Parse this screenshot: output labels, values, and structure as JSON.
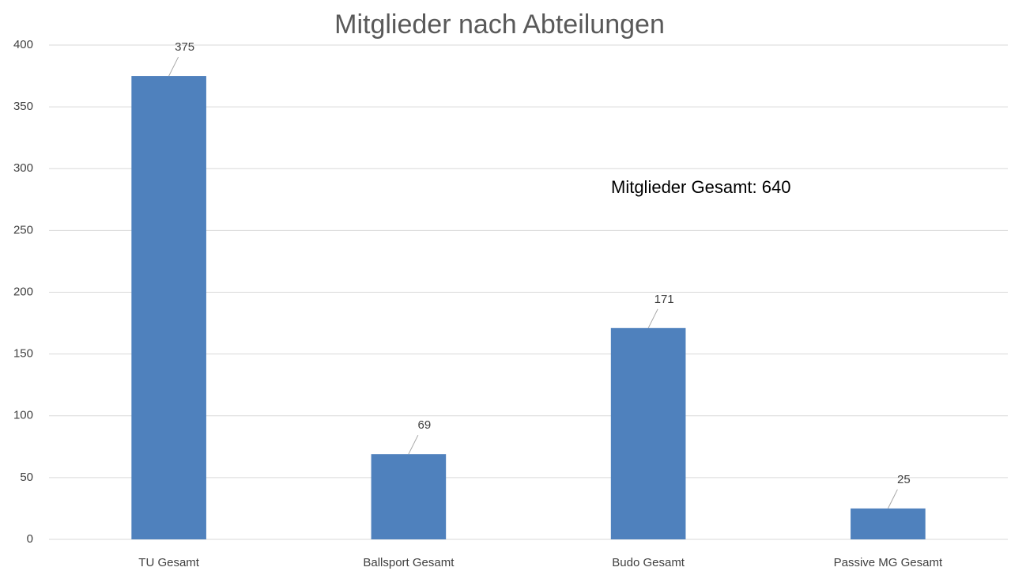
{
  "chart_data": {
    "type": "bar",
    "title": "Mitglieder nach Abteilungen",
    "annotation": "Mitglieder Gesamt: 640",
    "categories": [
      "TU Gesamt",
      "Ballsport Gesamt",
      "Budo Gesamt",
      "Passive MG Gesamt"
    ],
    "values": [
      375,
      69,
      171,
      25
    ],
    "color": "#4f81bd",
    "ylim": [
      0,
      400
    ],
    "yticks": [
      0,
      50,
      100,
      150,
      200,
      250,
      300,
      350,
      400
    ],
    "grid": true,
    "data_labels": true
  }
}
